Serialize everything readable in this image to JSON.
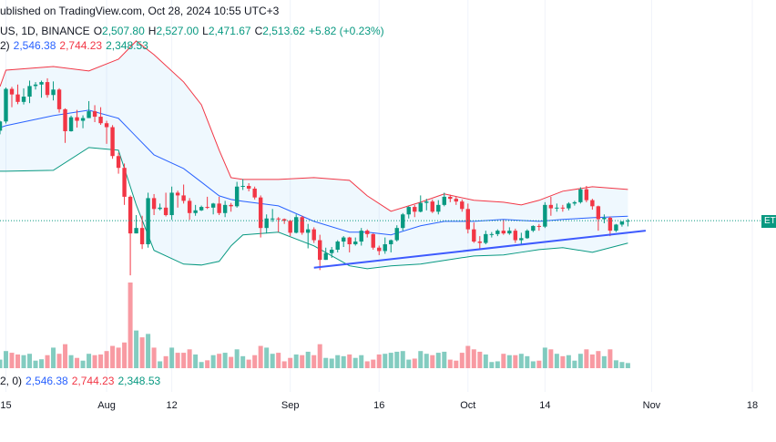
{
  "header": {
    "published": "ublished on TradingView.com, Oct 28, 2024 10:55 UTC+3",
    "symbol": "US, 1D, BINANCE",
    "ohlc": [
      {
        "label": "O",
        "value": "2,507.80"
      },
      {
        "label": "H",
        "value": "2,527.00"
      },
      {
        "label": "L",
        "value": "2,471.67"
      },
      {
        "label": "C",
        "value": "2,513.62"
      }
    ],
    "change": "+5.82 (+0.23%)",
    "bb_label": "2)",
    "bb_values": [
      "2,546.38",
      "2,744.23",
      "2,348.53"
    ],
    "vol_label": "2, 0)",
    "vol_values": [
      "2,546.38",
      "2,744.23",
      "2,348.53"
    ],
    "price_tag": "ET"
  },
  "chart_data": {
    "type": "candlestick",
    "up_color": "#089981",
    "down_color": "#f23645",
    "xlim": [
      "Jul 14",
      "Nov 22"
    ],
    "ylim": [
      1400,
      4140
    ],
    "xticks": [
      {
        "value": "Jul 15",
        "label": "15"
      },
      {
        "value": "Aug 1",
        "label": "Aug"
      },
      {
        "value": "Aug 12",
        "label": "12"
      },
      {
        "value": "Sep 1",
        "label": "Sep"
      },
      {
        "value": "Sep 16",
        "label": "16"
      },
      {
        "value": "Oct 1",
        "label": "Oct"
      },
      {
        "value": "Oct 14",
        "label": "14"
      },
      {
        "value": "Nov 1",
        "label": "Nov"
      },
      {
        "value": "Nov 18",
        "label": "18"
      }
    ],
    "grid": true,
    "x": [
      "Jul 14",
      "Jul 15",
      "Jul 16",
      "Jul 17",
      "Jul 18",
      "Jul 19",
      "Jul 20",
      "Jul 21",
      "Jul 22",
      "Jul 23",
      "Jul 24",
      "Jul 25",
      "Jul 26",
      "Jul 27",
      "Jul 28",
      "Jul 29",
      "Jul 30",
      "Jul 31",
      "Aug 1",
      "Aug 2",
      "Aug 3",
      "Aug 4",
      "Aug 5",
      "Aug 6",
      "Aug 7",
      "Aug 8",
      "Aug 9",
      "Aug 10",
      "Aug 11",
      "Aug 12",
      "Aug 13",
      "Aug 14",
      "Aug 15",
      "Aug 16",
      "Aug 17",
      "Aug 18",
      "Aug 19",
      "Aug 20",
      "Aug 21",
      "Aug 22",
      "Aug 23",
      "Aug 24",
      "Aug 25",
      "Aug 26",
      "Aug 27",
      "Aug 28",
      "Aug 29",
      "Aug 30",
      "Aug 31",
      "Sep 1",
      "Sep 2",
      "Sep 3",
      "Sep 4",
      "Sep 5",
      "Sep 6",
      "Sep 7",
      "Sep 8",
      "Sep 9",
      "Sep 10",
      "Sep 11",
      "Sep 12",
      "Sep 13",
      "Sep 14",
      "Sep 15",
      "Sep 16",
      "Sep 17",
      "Sep 18",
      "Sep 19",
      "Sep 20",
      "Sep 21",
      "Sep 22",
      "Sep 23",
      "Sep 24",
      "Sep 25",
      "Sep 26",
      "Sep 27",
      "Sep 28",
      "Sep 29",
      "Sep 30",
      "Oct 1",
      "Oct 2",
      "Oct 3",
      "Oct 4",
      "Oct 5",
      "Oct 6",
      "Oct 7",
      "Oct 8",
      "Oct 9",
      "Oct 10",
      "Oct 11",
      "Oct 12",
      "Oct 13",
      "Oct 14",
      "Oct 15",
      "Oct 16",
      "Oct 17",
      "Oct 18",
      "Oct 19",
      "Oct 20",
      "Oct 21",
      "Oct 22",
      "Oct 23",
      "Oct 24",
      "Oct 25",
      "Oct 26",
      "Oct 27",
      "Oct 28"
    ],
    "open": [
      3177,
      3245,
      3485,
      3444,
      3389,
      3428,
      3506,
      3517,
      3535,
      3440,
      3480,
      3335,
      3173,
      3276,
      3250,
      3270,
      3320,
      3280,
      3232,
      3203,
      2990,
      2903,
      2690,
      2420,
      2460,
      2340,
      2680,
      2600,
      2610,
      2555,
      2720,
      2700,
      2660,
      2570,
      2590,
      2615,
      2610,
      2640,
      2570,
      2630,
      2620,
      2765,
      2770,
      2750,
      2685,
      2460,
      2530,
      2530,
      2525,
      2513,
      2425,
      2540,
      2425,
      2450,
      2370,
      2225,
      2275,
      2300,
      2360,
      2390,
      2340,
      2360,
      2440,
      2415,
      2315,
      2290,
      2340,
      2370,
      2460,
      2560,
      2615,
      2580,
      2645,
      2655,
      2580,
      2630,
      2690,
      2675,
      2655,
      2600,
      2450,
      2360,
      2350,
      2415,
      2415,
      2440,
      2420,
      2440,
      2370,
      2385,
      2440,
      2475,
      2470,
      2630,
      2605,
      2610,
      2605,
      2640,
      2650,
      2745,
      2665,
      2620,
      2525,
      2535,
      2440,
      2485,
      2507.8
    ],
    "high": [
      3250,
      3495,
      3500,
      3517,
      3489,
      3546,
      3535,
      3546,
      3563,
      3540,
      3490,
      3342,
      3288,
      3330,
      3290,
      3395,
      3365,
      3350,
      3250,
      3218,
      3015,
      2935,
      2700,
      2555,
      2550,
      2720,
      2710,
      2640,
      2720,
      2765,
      2735,
      2780,
      2680,
      2630,
      2625,
      2690,
      2645,
      2690,
      2660,
      2645,
      2800,
      2820,
      2790,
      2765,
      2700,
      2560,
      2600,
      2540,
      2530,
      2520,
      2560,
      2550,
      2490,
      2465,
      2410,
      2315,
      2320,
      2370,
      2400,
      2395,
      2390,
      2460,
      2450,
      2420,
      2330,
      2390,
      2375,
      2480,
      2570,
      2620,
      2630,
      2700,
      2675,
      2670,
      2665,
      2720,
      2705,
      2690,
      2670,
      2640,
      2500,
      2400,
      2440,
      2430,
      2450,
      2520,
      2465,
      2455,
      2425,
      2450,
      2480,
      2490,
      2650,
      2690,
      2640,
      2630,
      2650,
      2660,
      2760,
      2770,
      2675,
      2625,
      2560,
      2545,
      2490,
      2510,
      2527
    ],
    "low": [
      3150,
      3230,
      3350,
      3372,
      3370,
      3380,
      3480,
      3420,
      3420,
      3400,
      3310,
      3087,
      3170,
      3200,
      3195,
      3270,
      3240,
      3220,
      3080,
      2970,
      2860,
      2630,
      2111,
      2420,
      2305,
      2315,
      2555,
      2590,
      2545,
      2520,
      2610,
      2640,
      2520,
      2550,
      2585,
      2600,
      2560,
      2555,
      2540,
      2580,
      2610,
      2740,
      2730,
      2670,
      2390,
      2420,
      2505,
      2430,
      2490,
      2400,
      2420,
      2410,
      2310,
      2350,
      2150,
      2225,
      2240,
      2280,
      2320,
      2280,
      2330,
      2330,
      2390,
      2300,
      2260,
      2270,
      2280,
      2360,
      2440,
      2530,
      2540,
      2575,
      2590,
      2570,
      2560,
      2620,
      2650,
      2630,
      2580,
      2420,
      2350,
      2310,
      2340,
      2390,
      2400,
      2410,
      2410,
      2350,
      2340,
      2380,
      2430,
      2440,
      2460,
      2550,
      2580,
      2580,
      2590,
      2625,
      2640,
      2650,
      2595,
      2440,
      2495,
      2400,
      2430,
      2470,
      2471.67
    ],
    "close": [
      3245,
      3485,
      3444,
      3389,
      3428,
      3506,
      3517,
      3535,
      3440,
      3480,
      3335,
      3173,
      3276,
      3250,
      3270,
      3320,
      3280,
      3232,
      3203,
      2990,
      2903,
      2690,
      2420,
      2460,
      2340,
      2680,
      2600,
      2610,
      2555,
      2720,
      2700,
      2660,
      2570,
      2590,
      2615,
      2610,
      2640,
      2570,
      2630,
      2620,
      2765,
      2770,
      2750,
      2685,
      2460,
      2530,
      2530,
      2525,
      2513,
      2425,
      2540,
      2425,
      2450,
      2370,
      2225,
      2275,
      2300,
      2360,
      2390,
      2340,
      2360,
      2440,
      2415,
      2315,
      2290,
      2340,
      2370,
      2460,
      2560,
      2615,
      2580,
      2645,
      2655,
      2580,
      2630,
      2690,
      2675,
      2655,
      2600,
      2450,
      2360,
      2350,
      2415,
      2415,
      2440,
      2420,
      2440,
      2370,
      2385,
      2440,
      2475,
      2470,
      2630,
      2605,
      2610,
      2605,
      2640,
      2650,
      2745,
      2665,
      2620,
      2525,
      2535,
      2440,
      2485,
      2507.8,
      2513.62
    ],
    "volume": [
      250,
      500,
      450,
      400,
      380,
      420,
      220,
      260,
      380,
      600,
      420,
      700,
      380,
      300,
      220,
      420,
      380,
      400,
      500,
      650,
      600,
      750,
      2500,
      1100,
      900,
      1000,
      600,
      200,
      350,
      600,
      450,
      450,
      550,
      400,
      180,
      230,
      380,
      420,
      450,
      330,
      550,
      350,
      250,
      380,
      650,
      600,
      420,
      450,
      200,
      300,
      400,
      380,
      480,
      380,
      700,
      300,
      280,
      380,
      350,
      400,
      300,
      380,
      200,
      250,
      400,
      420,
      450,
      480,
      500,
      250,
      280,
      500,
      420,
      380,
      450,
      480,
      250,
      220,
      450,
      650,
      550,
      480,
      400,
      180,
      200,
      420,
      380,
      380,
      420,
      350,
      200,
      220,
      600,
      550,
      420,
      350,
      380,
      220,
      420,
      550,
      400,
      500,
      350,
      550,
      230,
      180,
      150
    ],
    "band_x": [
      "Jul 14",
      "Jul 15",
      "Jul 23",
      "Jul 29",
      "Aug 3",
      "Aug 6",
      "Aug 9",
      "Aug 14",
      "Aug 17",
      "Aug 20",
      "Aug 22",
      "Aug 24",
      "Aug 30",
      "Sep 5",
      "Sep 11",
      "Sep 14",
      "Sep 18",
      "Sep 23",
      "Sep 27",
      "Oct 2",
      "Oct 7",
      "Oct 10",
      "Oct 13",
      "Oct 17",
      "Oct 22",
      "Oct 28"
    ],
    "band_fill": "rgba(33,150,243,0.07)",
    "bands": [
      {
        "color": "#f23645",
        "values": [
          3502,
          3623,
          3650,
          3617,
          3704,
          3838,
          3737,
          3536,
          3368,
          3033,
          2831,
          2818,
          2818,
          2831,
          2811,
          2697,
          2583,
          2650,
          2711,
          2664,
          2650,
          2630,
          2664,
          2731,
          2764,
          2744.23
        ]
      },
      {
        "color": "#2962ff",
        "values": [
          3200,
          3214,
          3288,
          3328,
          3268,
          3133,
          2999,
          2898,
          2798,
          2697,
          2670,
          2657,
          2623,
          2509,
          2429,
          2429,
          2409,
          2476,
          2509,
          2509,
          2523,
          2516,
          2509,
          2523,
          2536,
          2546.38
        ]
      },
      {
        "color": "#089981",
        "values": [
          2878,
          2878,
          2885,
          3053,
          3033,
          2630,
          2295,
          2194,
          2187,
          2214,
          2328,
          2409,
          2429,
          2328,
          2181,
          2160,
          2181,
          2194,
          2221,
          2254,
          2261,
          2281,
          2301,
          2315,
          2281,
          2348.53
        ]
      }
    ],
    "trendline": {
      "color": "#3d5afe",
      "x": [
        "Sep 5",
        "Oct 31"
      ],
      "values": [
        2167,
        2440
      ]
    }
  }
}
